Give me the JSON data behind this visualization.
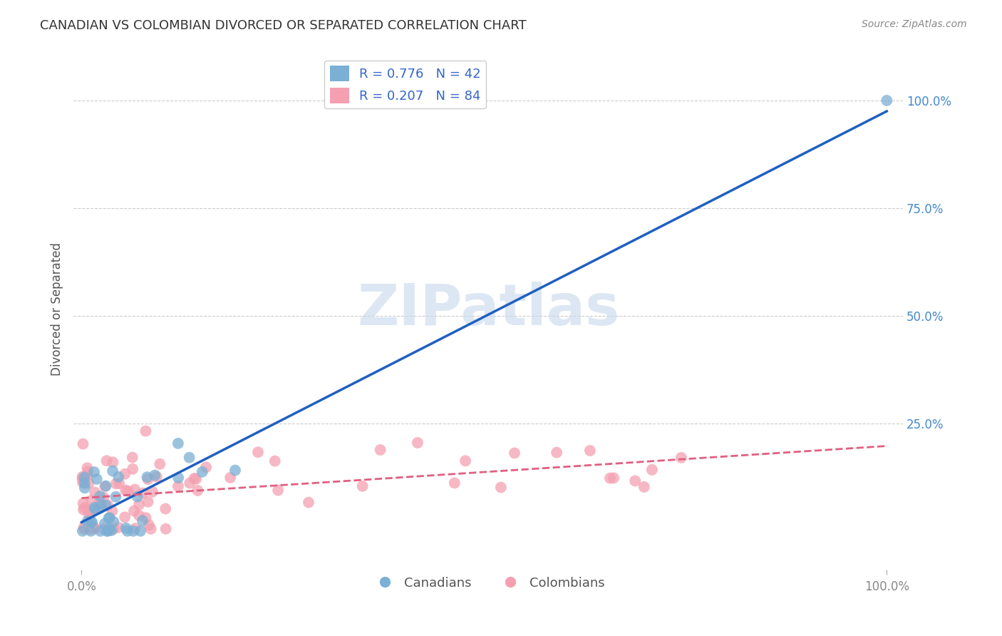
{
  "title": "CANADIAN VS COLOMBIAN DIVORCED OR SEPARATED CORRELATION CHART",
  "source": "Source: ZipAtlas.com",
  "ylabel": "Divorced or Separated",
  "canadian_R": 0.776,
  "canadian_N": 42,
  "colombian_R": 0.207,
  "colombian_N": 84,
  "canadian_color": "#7bafd4",
  "colombian_color": "#f4a0b0",
  "canadian_line_color": "#2060c0",
  "colombian_line_color": "#e06080",
  "watermark_text": "ZIPatlas",
  "bg_color": "#ffffff",
  "grid_color": "#cccccc",
  "title_color": "#333333"
}
